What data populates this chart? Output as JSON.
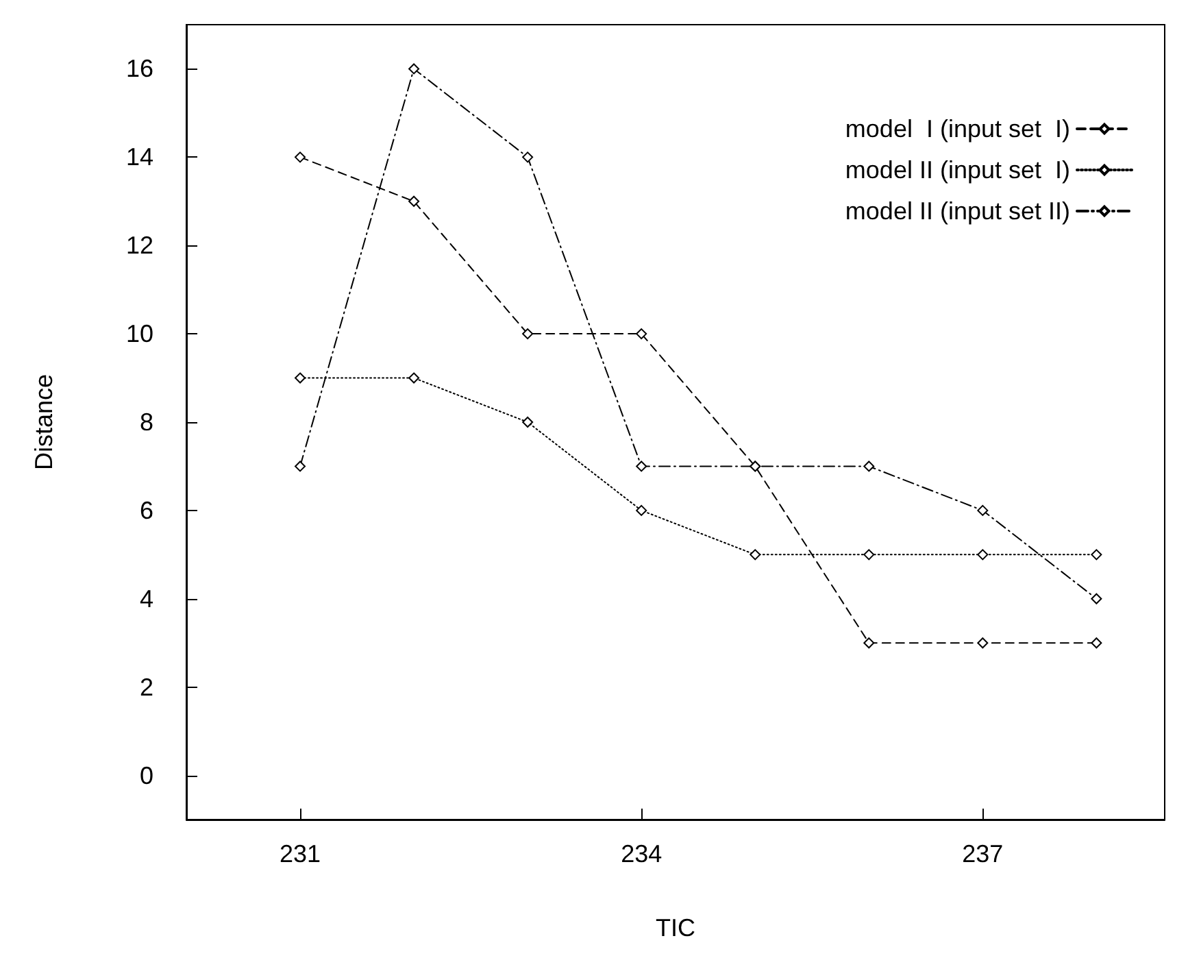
{
  "chart_data": {
    "type": "line",
    "xlabel": "TIC",
    "ylabel": "Distance",
    "x": [
      231,
      232,
      233,
      234,
      235,
      236,
      237,
      238
    ],
    "series": [
      {
        "name": "model  I (input set  I)",
        "color": "#000000",
        "line_style": "dashed",
        "values": [
          14,
          13,
          10,
          10,
          7,
          3,
          3,
          3
        ]
      },
      {
        "name": "model II (input set  I)",
        "color": "#000000",
        "line_style": "dotted",
        "values": [
          9,
          9,
          8,
          6,
          5,
          5,
          5,
          5
        ]
      },
      {
        "name": "model II (input set II)",
        "color": "#000000",
        "line_style": "dashdot",
        "values": [
          7,
          16,
          14,
          7,
          7,
          7,
          6,
          4
        ]
      }
    ],
    "xlim": [
      230,
      238.6
    ],
    "xticks": [
      231,
      234,
      237
    ],
    "ylim": [
      -1,
      17
    ],
    "yticks": [
      0,
      2,
      4,
      6,
      8,
      10,
      12,
      14,
      16
    ],
    "grid": false,
    "legend": "top right",
    "marker": "diamond"
  }
}
